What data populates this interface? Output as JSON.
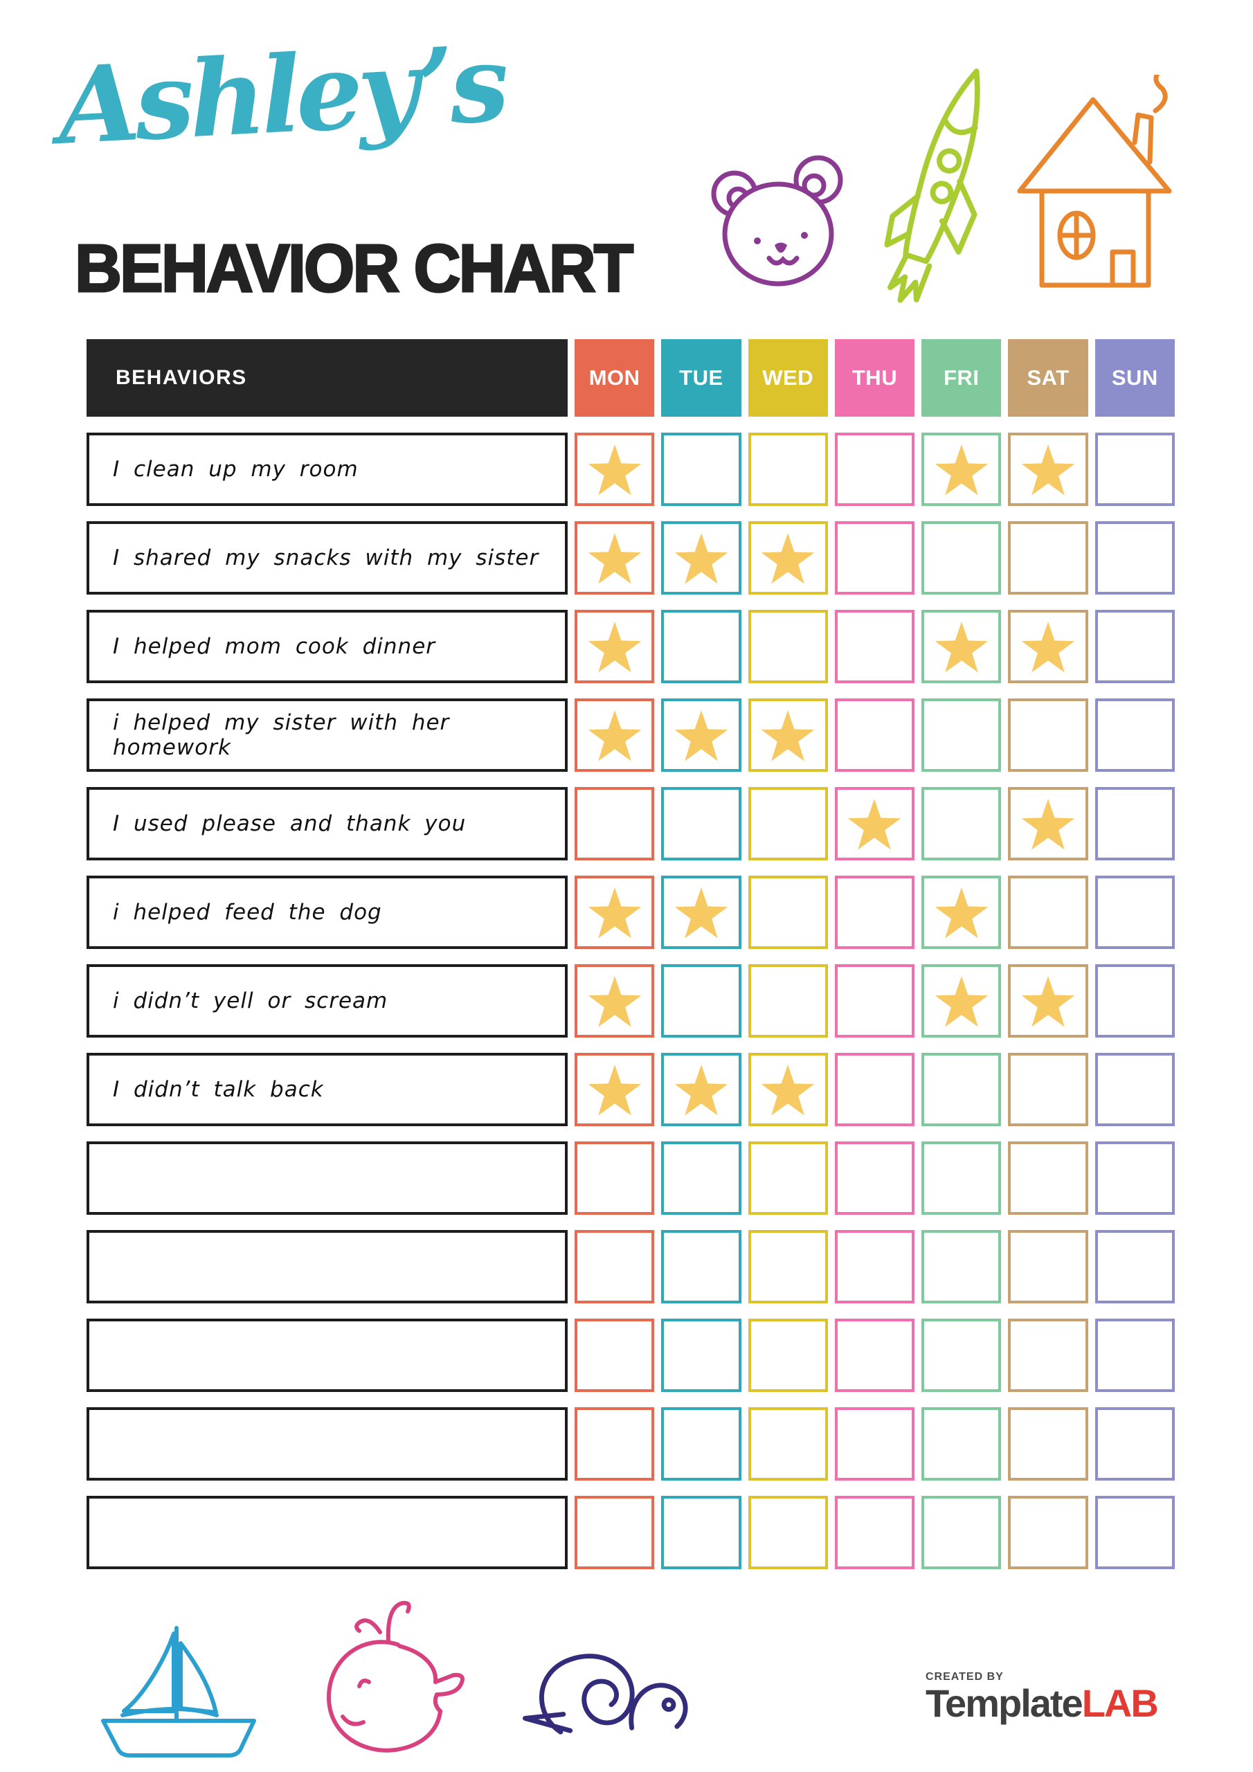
{
  "header": {
    "name_script": "Ashley’s",
    "title": "BEHAVIOR CHART",
    "accent_color": "#3BAFC3",
    "title_color": "#232323"
  },
  "doodles": {
    "bear_color": "#8A3A90",
    "rocket_color": "#A9CC33",
    "house_color": "#E8862E",
    "boat_color": "#2B9FD0",
    "whale_color": "#D8417F",
    "snail_color": "#332C7B"
  },
  "table": {
    "behaviors_header": "BEHAVIORS",
    "header_bg": "#262626",
    "star_color": "#F6C963",
    "days": [
      {
        "label": "MON",
        "color": "#E7694F"
      },
      {
        "label": "TUE",
        "color": "#2FA9B8"
      },
      {
        "label": "WED",
        "color": "#DCC32C"
      },
      {
        "label": "THU",
        "color": "#F06FAD"
      },
      {
        "label": "FRI",
        "color": "#7FC99C"
      },
      {
        "label": "SAT",
        "color": "#C7A170"
      },
      {
        "label": "SUN",
        "color": "#8C8DCB"
      }
    ],
    "rows": [
      {
        "label": "I clean up my room",
        "stars": [
          0,
          4,
          5
        ]
      },
      {
        "label": "I shared my snacks with my sister",
        "stars": [
          0,
          1,
          2
        ]
      },
      {
        "label": "I helped mom cook dinner",
        "stars": [
          0,
          4,
          5
        ]
      },
      {
        "label": "i helped my sister with her homework",
        "stars": [
          0,
          1,
          2
        ]
      },
      {
        "label": "I used please and thank you",
        "stars": [
          3,
          5
        ]
      },
      {
        "label": "i helped feed the dog",
        "stars": [
          0,
          1,
          4
        ]
      },
      {
        "label": "i didn’t yell or scream",
        "stars": [
          0,
          4,
          5
        ]
      },
      {
        "label": "I didn’t talk back",
        "stars": [
          0,
          1,
          2
        ]
      },
      {
        "label": "",
        "stars": []
      },
      {
        "label": "",
        "stars": []
      },
      {
        "label": "",
        "stars": []
      },
      {
        "label": "",
        "stars": []
      },
      {
        "label": "",
        "stars": []
      }
    ]
  },
  "footer": {
    "credit_label": "CREATED BY",
    "brand_part1": "Template",
    "brand_part2": "LAB",
    "brand_dark": "#3F3F3F",
    "brand_red": "#E23B33"
  }
}
